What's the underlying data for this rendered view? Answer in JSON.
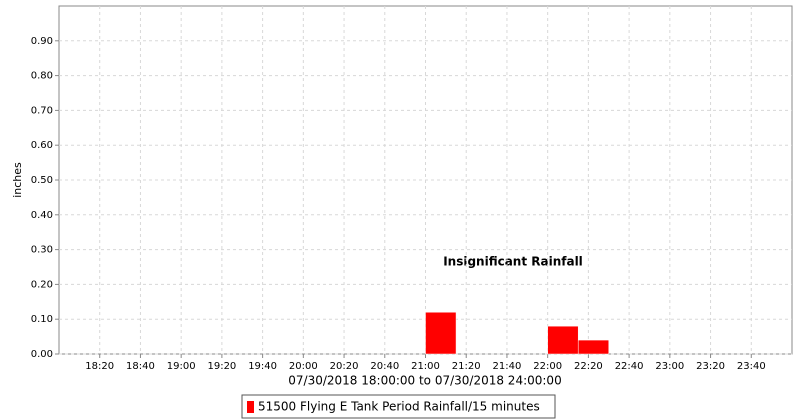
{
  "chart_data": {
    "type": "bar",
    "x_label": "07/30/2018 18:00:00 to 07/30/2018 24:00:00",
    "y_label": "inches",
    "annotation": "Insignificant Rainfall",
    "xlim": [
      "18:00",
      "24:00"
    ],
    "xticks": [
      "18:20",
      "18:40",
      "19:00",
      "19:20",
      "19:40",
      "20:00",
      "20:20",
      "20:40",
      "21:00",
      "21:20",
      "21:40",
      "22:00",
      "22:20",
      "22:40",
      "23:00",
      "23:20",
      "23:40"
    ],
    "ylim": [
      0,
      1.0
    ],
    "yticks": [
      {
        "value": 0,
        "label": "0.00"
      },
      {
        "value": 0.1,
        "label": "0.10"
      },
      {
        "value": 0.2,
        "label": "0.20"
      },
      {
        "value": 0.3,
        "label": "0.30"
      },
      {
        "value": 0.4,
        "label": "0.40"
      },
      {
        "value": 0.5,
        "label": "0.50"
      },
      {
        "value": 0.6,
        "label": "0.60"
      },
      {
        "value": 0.7,
        "label": "0.70"
      },
      {
        "value": 0.8,
        "label": "0.80"
      },
      {
        "value": 0.9,
        "label": "0.90"
      }
    ],
    "grid": true,
    "series": [
      {
        "name": "51500 Flying E Tank Period Rainfall/15 minutes",
        "color": "#ff0000",
        "x": [
          "21:00",
          "22:00",
          "22:15"
        ],
        "values": [
          0.12,
          0.08,
          0.04
        ]
      }
    ]
  }
}
